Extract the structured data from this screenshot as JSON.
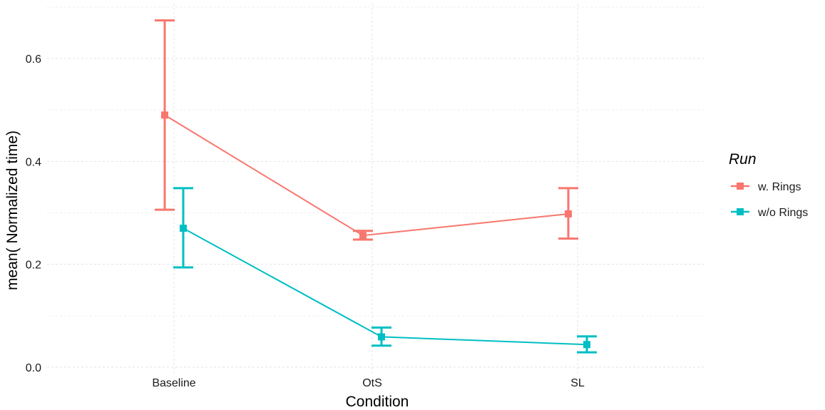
{
  "chart_data": {
    "type": "line",
    "title": "",
    "xlabel": "Condition",
    "ylabel": "mean( Normalized time)",
    "categories": [
      "Baseline",
      "OtS",
      "SL"
    ],
    "ylim": [
      0,
      0.68
    ],
    "yticks": [
      0.0,
      0.2,
      0.4,
      0.6
    ],
    "ytick_labels": [
      "0.0",
      "0.2",
      "0.4",
      "0.6"
    ],
    "grid": true,
    "legend": {
      "title": "Run",
      "position": "right"
    },
    "series": [
      {
        "name": "w. Rings",
        "color": "#F8766D",
        "values": [
          0.49,
          0.256,
          0.298
        ],
        "error_low": [
          0.306,
          0.248,
          0.25
        ],
        "error_high": [
          0.674,
          0.265,
          0.348
        ]
      },
      {
        "name": "w/o Rings",
        "color": "#00BFC4",
        "values": [
          0.27,
          0.059,
          0.044
        ],
        "error_low": [
          0.194,
          0.042,
          0.029
        ],
        "error_high": [
          0.348,
          0.077,
          0.06
        ]
      }
    ]
  }
}
